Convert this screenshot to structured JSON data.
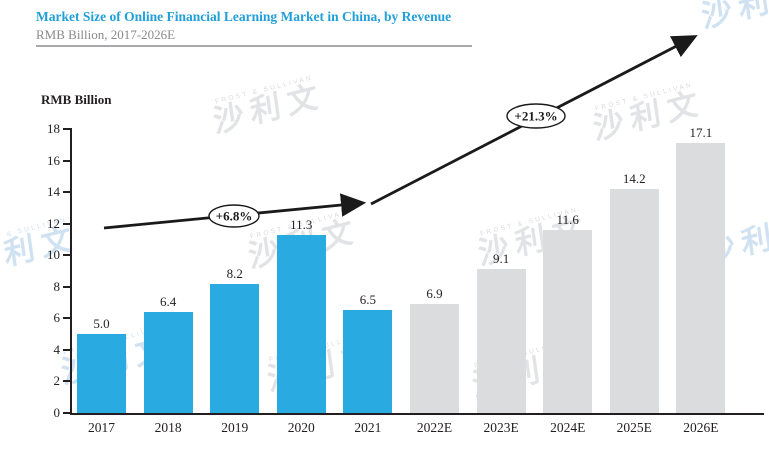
{
  "header": {
    "title": "Market Size of Online Financial Learning Market in China, by Revenue",
    "subtitle": "RMB Billion, 2017-2026E"
  },
  "chart_data": {
    "type": "bar",
    "title": "Market Size of Online Financial Learning Market in China, by Revenue",
    "subtitle": "RMB Billion, 2017-2026E",
    "ylabel": "RMB Billion",
    "xlabel": "",
    "categories": [
      "2017",
      "2018",
      "2019",
      "2020",
      "2021",
      "2022E",
      "2023E",
      "2024E",
      "2025E",
      "2026E"
    ],
    "values": [
      5.0,
      6.4,
      8.2,
      11.3,
      6.5,
      6.9,
      9.1,
      11.6,
      14.2,
      17.1
    ],
    "estimate_suffix": "E",
    "colors": {
      "historical": "#29abe2",
      "estimate": "#dbdcdd"
    },
    "y_axis": {
      "min": 0,
      "max": 18,
      "step": 2,
      "ticks": [
        0,
        2,
        4,
        6,
        8,
        10,
        12,
        14,
        16,
        18
      ]
    },
    "grid": false,
    "legend": null,
    "annotations": [
      {
        "label": "+6.8%"
      },
      {
        "label": "+21.3%"
      }
    ]
  },
  "watermark": {
    "chars": "沙利文",
    "arc_text": "FROST & SULLIVAN"
  }
}
